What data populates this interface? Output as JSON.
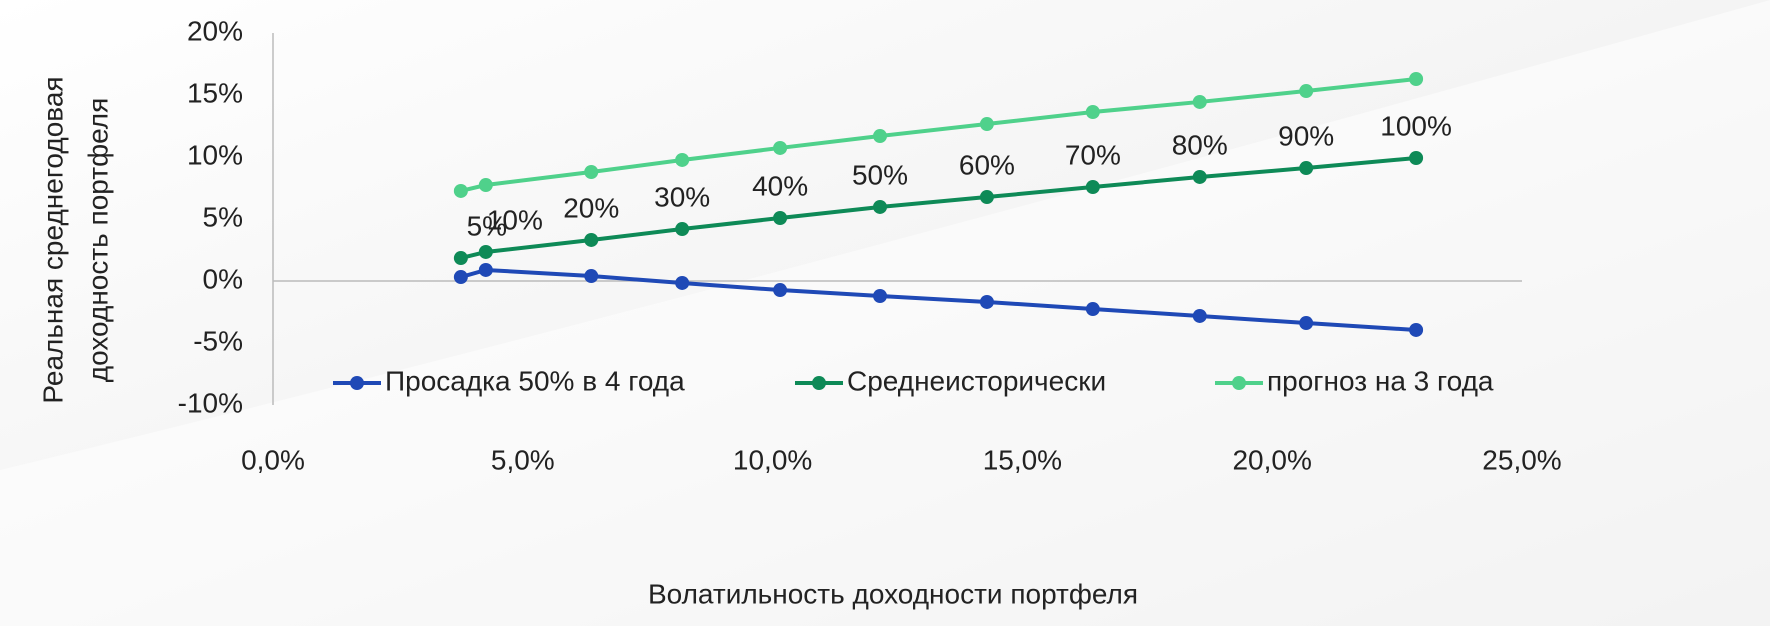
{
  "chart_data": {
    "type": "line",
    "xlabel": "Волатильность доходности портфеля",
    "ylabel": [
      "Реальная среднегодовая",
      "доходность портфеля"
    ],
    "x": [
      3.76,
      4.26,
      6.37,
      8.19,
      10.15,
      12.15,
      14.29,
      16.41,
      18.55,
      20.68,
      22.88
    ],
    "series": [
      {
        "name": "Просадка 50% в 4 года",
        "color": "#1f49b6",
        "values": [
          0.32,
          0.89,
          0.4,
          -0.16,
          -0.73,
          -1.21,
          -1.69,
          -2.26,
          -2.82,
          -3.39,
          -3.95
        ]
      },
      {
        "name": "Среднеисторически",
        "color": "#0e8a57",
        "values": [
          1.85,
          2.34,
          3.31,
          4.19,
          5.08,
          5.97,
          6.77,
          7.58,
          8.39,
          9.11,
          9.92
        ]
      },
      {
        "name": "прогноз на 3 года",
        "color": "#4fd18b",
        "values": [
          7.26,
          7.74,
          8.79,
          9.76,
          10.73,
          11.69,
          12.66,
          13.63,
          14.44,
          15.32,
          16.29
        ]
      }
    ],
    "point_labels": [
      "5%",
      "10%",
      "20%",
      "30%",
      "40%",
      "50%",
      "60%",
      "70%",
      "80%",
      "90%",
      "100%"
    ],
    "xlim": [
      0,
      25
    ],
    "xticks": [
      {
        "value": 0,
        "label": "0,0%"
      },
      {
        "value": 5,
        "label": "5,0%"
      },
      {
        "value": 10,
        "label": "10,0%"
      },
      {
        "value": 15,
        "label": "15,0%"
      },
      {
        "value": 20,
        "label": "20,0%"
      },
      {
        "value": 25,
        "label": "25,0%"
      }
    ],
    "ylim": [
      -10,
      20
    ],
    "yticks": [
      {
        "value": 20,
        "label": "20%"
      },
      {
        "value": 15,
        "label": "15%"
      },
      {
        "value": 10,
        "label": "10%"
      },
      {
        "value": 5,
        "label": "5%"
      },
      {
        "value": 0,
        "label": "0%"
      },
      {
        "value": -5,
        "label": "-5%"
      },
      {
        "value": -10,
        "label": "-10%"
      }
    ],
    "legend": "bottom"
  }
}
